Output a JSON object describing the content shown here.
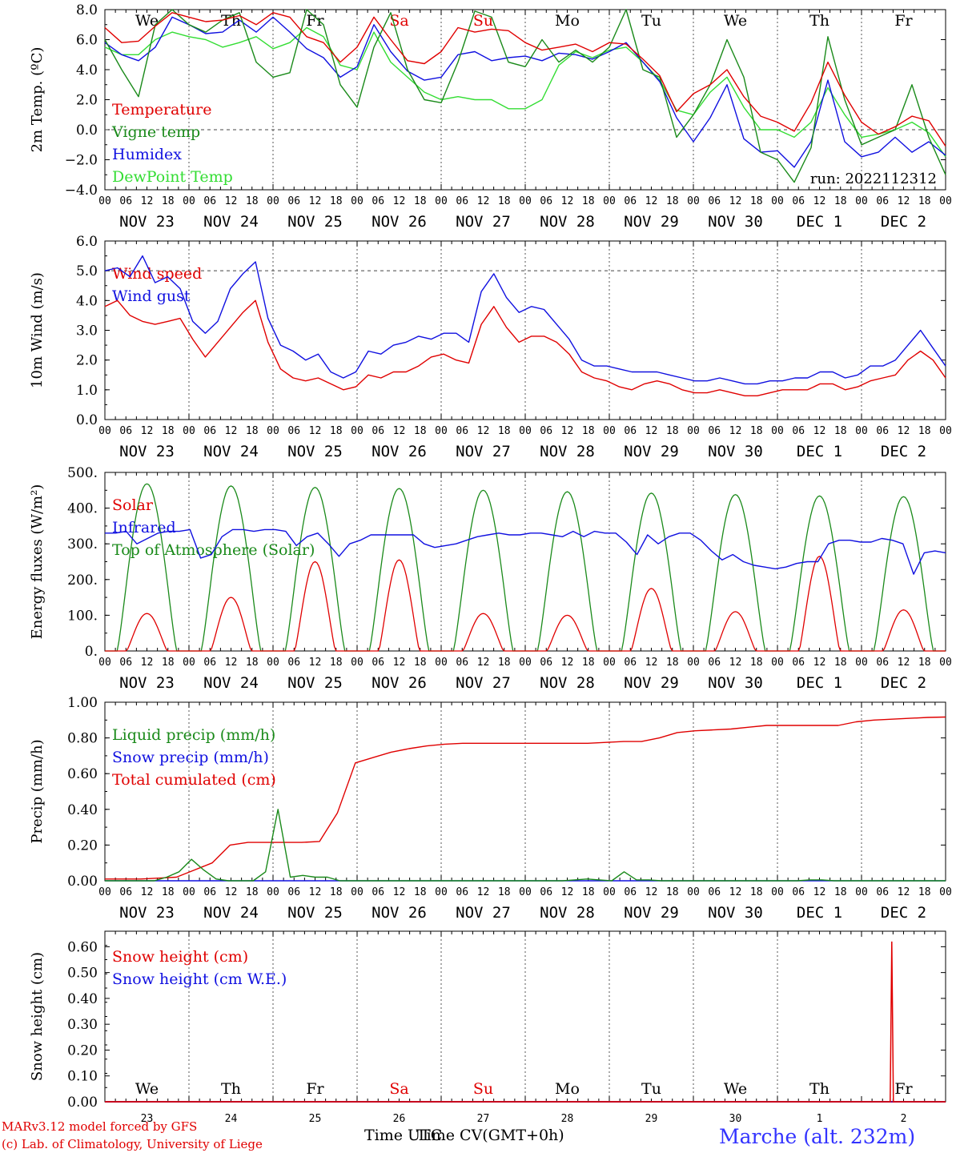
{
  "colors": {
    "red": "#e00000",
    "green": "#1a8a1a",
    "blue": "#1010e0",
    "lightgreen": "#33dd33",
    "purple": "#7a007a",
    "text": "#000000",
    "grid": "#555555",
    "station": "#3333ff"
  },
  "hour_ticks": [
    "00",
    "06",
    "12",
    "18"
  ],
  "end_tick": "00",
  "date_labels": [
    "NOV 23",
    "NOV 24",
    "NOV 25",
    "NOV 26",
    "NOV 27",
    "NOV 28",
    "NOV 29",
    "NOV 30",
    "DEC  1",
    "DEC  2"
  ],
  "weekdays": [
    "We",
    "Th",
    "Fr",
    "Sa",
    "Su",
    "Mo",
    "Tu",
    "We",
    "Th",
    "Fr"
  ],
  "weekday_colors": [
    "black",
    "black",
    "black",
    "red",
    "red",
    "black",
    "black",
    "black",
    "black",
    "black"
  ],
  "bottom_day_numbers": [
    "23",
    "24",
    "25",
    "26",
    "27",
    "28",
    "29",
    "30",
    "1",
    "2"
  ],
  "footer": {
    "model": "MARv3.12 model forced by GFS",
    "credit": "(c) Lab. of Climatology, University of Liege",
    "xlabel_a": "Time UTC",
    "xlabel_b": "Time CV(GMT+0h)",
    "station": "Marche (alt. 232m)"
  },
  "chart_data": [
    {
      "type": "line",
      "panel": "temperature",
      "ylabel": "2m Temp. (ºC)",
      "ylim": [
        -4,
        8
      ],
      "yticks": [
        "8.0",
        "6.0",
        "4.0",
        "2.0",
        "0.0",
        "−2.0",
        "−4.0"
      ],
      "run_label": "run: 2022112312",
      "x_hours_step": 6,
      "series": [
        {
          "name": "Temperature",
          "color_key": "red",
          "values": [
            6.8,
            5.8,
            5.9,
            6.9,
            7.8,
            7.5,
            7.2,
            7.3,
            7.6,
            7.0,
            7.8,
            7.5,
            6.2,
            5.8,
            4.5,
            5.5,
            7.5,
            6.0,
            4.6,
            4.4,
            5.2,
            6.8,
            6.5,
            6.7,
            6.6,
            5.8,
            5.3,
            5.5,
            5.7,
            5.2,
            5.8,
            5.7,
            4.7,
            3.6,
            1.2,
            2.4,
            3.0,
            4.0,
            2.2,
            0.9,
            0.5,
            -0.1,
            1.8,
            4.5,
            2.3,
            0.5,
            -0.3,
            0.2,
            0.9,
            0.6,
            -1.1
          ]
        },
        {
          "name": "Vigne temp",
          "color_key": "green",
          "values": [
            6.0,
            4.0,
            2.2,
            7.0,
            8.0,
            7.0,
            6.5,
            7.3,
            7.8,
            4.5,
            3.5,
            3.8,
            8.2,
            7.0,
            3.0,
            1.5,
            5.5,
            7.8,
            4.0,
            2.0,
            1.8,
            4.5,
            7.9,
            7.5,
            4.5,
            4.2,
            6.0,
            4.5,
            5.3,
            4.5,
            5.5,
            8.0,
            4.0,
            3.5,
            -0.5,
            1.0,
            3.0,
            6.0,
            3.5,
            -1.5,
            -2.0,
            -3.5,
            -1.2,
            6.2,
            2.0,
            -1.0,
            -0.5,
            0.0,
            3.0,
            -0.5,
            -3.0
          ]
        },
        {
          "name": "Humidex",
          "color_key": "blue",
          "values": [
            5.8,
            5.0,
            4.6,
            5.5,
            7.5,
            7.0,
            6.4,
            6.5,
            7.3,
            6.5,
            7.5,
            6.5,
            5.4,
            4.8,
            3.5,
            4.2,
            7.0,
            5.2,
            3.9,
            3.3,
            3.5,
            5.0,
            5.2,
            4.6,
            4.8,
            4.9,
            4.6,
            5.1,
            5.0,
            4.7,
            5.2,
            5.8,
            4.5,
            3.2,
            0.8,
            -0.8,
            0.8,
            3.0,
            -0.6,
            -1.5,
            -1.4,
            -2.5,
            -0.8,
            3.3,
            -0.8,
            -1.8,
            -1.5,
            -0.5,
            -1.5,
            -0.8,
            -1.7
          ]
        },
        {
          "name": "DewPoint Temp",
          "color_key": "lightgreen",
          "values": [
            5.5,
            5.0,
            5.0,
            6.0,
            6.5,
            6.2,
            6.0,
            5.5,
            5.8,
            6.2,
            5.4,
            5.8,
            6.8,
            6.2,
            4.3,
            4.0,
            6.5,
            4.5,
            3.5,
            2.5,
            2.0,
            2.2,
            2.0,
            2.0,
            1.4,
            1.4,
            2.0,
            4.3,
            5.2,
            4.8,
            5.3,
            5.5,
            4.5,
            3.3,
            1.3,
            1.0,
            2.5,
            3.5,
            1.5,
            0.0,
            0.0,
            -0.5,
            0.5,
            2.8,
            1.0,
            -0.5,
            -0.3,
            0.0,
            0.5,
            -0.2,
            -1.8
          ]
        }
      ]
    },
    {
      "type": "line",
      "panel": "wind",
      "ylabel": "10m Wind (m/s)",
      "ylim": [
        0,
        6
      ],
      "yticks": [
        "6.0",
        "5.0",
        "4.0",
        "3.0",
        "2.0",
        "1.0",
        "0.0"
      ],
      "refline": 5.0,
      "x_hours_step": 6,
      "series": [
        {
          "name": "Wind speed",
          "color_key": "red",
          "values": [
            3.8,
            4.0,
            3.5,
            3.3,
            3.2,
            3.3,
            3.4,
            2.7,
            2.1,
            2.6,
            3.1,
            3.6,
            4.0,
            2.6,
            1.7,
            1.4,
            1.3,
            1.4,
            1.2,
            1.0,
            1.1,
            1.5,
            1.4,
            1.6,
            1.6,
            1.8,
            2.1,
            2.2,
            2.0,
            1.9,
            3.2,
            3.8,
            3.1,
            2.6,
            2.8,
            2.8,
            2.6,
            2.2,
            1.6,
            1.4,
            1.3,
            1.1,
            1.0,
            1.2,
            1.3,
            1.2,
            1.0,
            0.9,
            0.9,
            1.0,
            0.9,
            0.8,
            0.8,
            0.9,
            1.0,
            1.0,
            1.0,
            1.2,
            1.2,
            1.0,
            1.1,
            1.3,
            1.4,
            1.5,
            2.0,
            2.3,
            2.0,
            1.4
          ]
        },
        {
          "name": "Wind gust",
          "color_key": "blue",
          "values": [
            5.0,
            5.1,
            4.8,
            5.5,
            4.6,
            4.8,
            4.4,
            3.3,
            2.9,
            3.3,
            4.4,
            4.9,
            5.3,
            3.4,
            2.5,
            2.3,
            2.0,
            2.2,
            1.6,
            1.4,
            1.6,
            2.3,
            2.2,
            2.5,
            2.6,
            2.8,
            2.7,
            2.9,
            2.9,
            2.6,
            4.3,
            4.9,
            4.1,
            3.6,
            3.8,
            3.7,
            3.2,
            2.7,
            2.0,
            1.8,
            1.8,
            1.7,
            1.6,
            1.6,
            1.6,
            1.5,
            1.4,
            1.3,
            1.3,
            1.4,
            1.3,
            1.2,
            1.2,
            1.3,
            1.3,
            1.4,
            1.4,
            1.6,
            1.6,
            1.4,
            1.5,
            1.8,
            1.8,
            2.0,
            2.5,
            3.0,
            2.4,
            1.8
          ]
        }
      ]
    },
    {
      "type": "line",
      "panel": "energy",
      "ylabel": "Energy fluxes (W/m²)",
      "ylim": [
        0,
        500
      ],
      "yticks": [
        "500.",
        "400.",
        "300.",
        "200.",
        "100.",
        "0."
      ],
      "series": [
        {
          "name": "Solar",
          "color_key": "red",
          "day_peaks": [
            105,
            150,
            250,
            255,
            105,
            100,
            175,
            110,
            265,
            115
          ]
        },
        {
          "name": "Infrared",
          "color_key": "blue",
          "values": [
            330,
            330,
            335,
            300,
            315,
            330,
            335,
            335,
            340,
            260,
            270,
            320,
            340,
            340,
            335,
            340,
            340,
            335,
            295,
            320,
            330,
            300,
            265,
            300,
            310,
            325,
            325,
            325,
            325,
            325,
            300,
            290,
            295,
            300,
            310,
            320,
            325,
            330,
            325,
            325,
            330,
            330,
            325,
            320,
            335,
            320,
            335,
            330,
            330,
            305,
            270,
            325,
            300,
            320,
            330,
            330,
            310,
            280,
            255,
            270,
            250,
            240,
            235,
            230,
            235,
            245,
            250,
            250,
            300,
            310,
            310,
            305,
            305,
            315,
            310,
            300,
            215,
            275,
            280,
            275
          ]
        },
        {
          "name": "Top of Atmosphere (Solar)",
          "color_key": "green",
          "day_peaks": [
            468,
            462,
            458,
            455,
            450,
            446,
            442,
            438,
            434,
            432
          ]
        }
      ]
    },
    {
      "type": "line",
      "panel": "precip",
      "ylabel": "Precip (mm/h)",
      "ylim": [
        0,
        1
      ],
      "yticks": [
        "1.00",
        "0.80",
        "0.60",
        "0.40",
        "0.20",
        "0.00"
      ],
      "series": [
        {
          "name": "Liquid precip (mm/h)",
          "color_key": "green",
          "values": [
            0,
            0,
            0,
            0,
            0,
            0.02,
            0.05,
            0.12,
            0.06,
            0.01,
            0,
            0,
            0,
            0.05,
            0.4,
            0.02,
            0.03,
            0.02,
            0.02,
            0,
            0,
            0,
            0,
            0,
            0,
            0,
            0,
            0,
            0,
            0,
            0,
            0,
            0,
            0,
            0,
            0,
            0,
            0,
            0.005,
            0.01,
            0.005,
            0,
            0.05,
            0.005,
            0.005,
            0,
            0,
            0,
            0,
            0,
            0,
            0,
            0,
            0,
            0,
            0,
            0,
            0.005,
            0.005,
            0,
            0,
            0,
            0,
            0,
            0,
            0,
            0,
            0,
            0
          ]
        },
        {
          "name": "Snow precip (mm/h)",
          "color_key": "blue",
          "values": [
            0,
            0
          ]
        },
        {
          "name": "Total cumulated (cm)",
          "color_key": "red",
          "values": [
            0.01,
            0.01,
            0.01,
            0.015,
            0.02,
            0.06,
            0.1,
            0.2,
            0.215,
            0.215,
            0.215,
            0.215,
            0.22,
            0.38,
            0.66,
            0.69,
            0.72,
            0.74,
            0.755,
            0.765,
            0.77,
            0.77,
            0.77,
            0.77,
            0.77,
            0.77,
            0.77,
            0.77,
            0.775,
            0.78,
            0.78,
            0.8,
            0.83,
            0.84,
            0.845,
            0.85,
            0.86,
            0.87,
            0.87,
            0.87,
            0.87,
            0.87,
            0.89,
            0.9,
            0.905,
            0.91,
            0.915,
            0.917
          ]
        }
      ]
    },
    {
      "type": "line",
      "panel": "snow",
      "ylabel": "Snow height (cm)",
      "ylim": [
        0,
        0.66
      ],
      "yticks": [
        "0.60",
        "0.50",
        "0.40",
        "0.30",
        "0.20",
        "0.10",
        "0.00"
      ],
      "series": [
        {
          "name": "Snow height (cm)",
          "color_key": "red",
          "spike_x_day": 9.36,
          "spike_value": 0.62
        },
        {
          "name": "Snow height (cm W.E.)",
          "color_key": "blue",
          "values": [
            0,
            0
          ]
        }
      ]
    }
  ]
}
